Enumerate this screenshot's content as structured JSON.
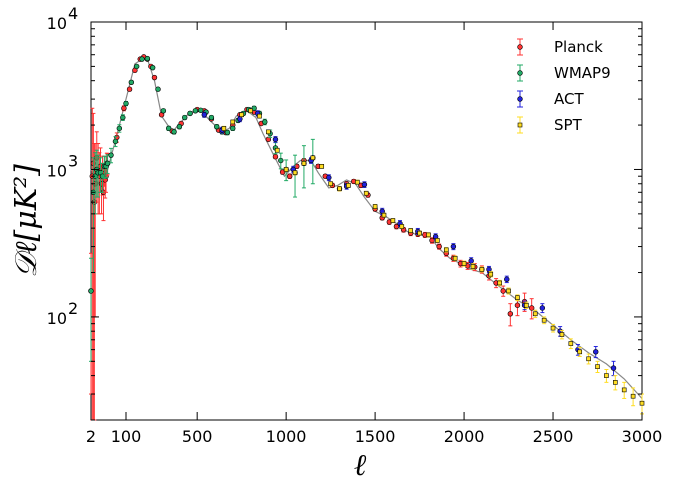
{
  "chart_data": {
    "type": "scatter",
    "xlabel": "ℓ",
    "ylabel": "𝒟ℓ[μK²]",
    "xlim": [
      2,
      3000
    ],
    "ylim": [
      20,
      10000
    ],
    "yscale": "log",
    "xscale": "sqrt-low / linear-high (first 2–100 compressed)",
    "x_ticks": [
      {
        "value": 2,
        "label": "2"
      },
      {
        "value": 100,
        "label": "100"
      },
      {
        "value": 500,
        "label": "500"
      },
      {
        "value": 1000,
        "label": "1000"
      },
      {
        "value": 1500,
        "label": "1500"
      },
      {
        "value": 2000,
        "label": "2000"
      },
      {
        "value": 2500,
        "label": "2500"
      },
      {
        "value": 3000,
        "label": "3000"
      }
    ],
    "y_ticks": [
      {
        "value": 100,
        "base": "10",
        "exp": "2"
      },
      {
        "value": 1000,
        "base": "10",
        "exp": "3"
      },
      {
        "value": 10000,
        "base": "10",
        "exp": "4"
      }
    ],
    "legend_position": "top-right",
    "grid": false,
    "colors": {
      "Planck": "#ff3333",
      "WMAP9": "#22aa66",
      "ACT": "#2222dd",
      "SPT": "#ffdd22",
      "model": "#888888"
    },
    "model_curve": {
      "x": [
        2,
        10,
        30,
        60,
        100,
        150,
        200,
        220,
        260,
        300,
        360,
        410,
        460,
        520,
        580,
        640,
        680,
        720,
        780,
        830,
        870,
        930,
        990,
        1040,
        1080,
        1140,
        1180,
        1240,
        1290,
        1340,
        1390,
        1440,
        1500,
        1560,
        1620,
        1680,
        1740,
        1800,
        1860,
        1920,
        1980,
        2040,
        2100,
        2200,
        2300,
        2400,
        2500,
        2600,
        2700,
        2800,
        2900,
        3000
      ],
      "y": [
        1000,
        800,
        1000,
        1700,
        3000,
        5200,
        5700,
        5600,
        4000,
        2300,
        1800,
        2100,
        2450,
        2500,
        2100,
        1800,
        1900,
        2300,
        2500,
        2250,
        1750,
        1250,
        900,
        1050,
        1150,
        1150,
        950,
        750,
        780,
        850,
        800,
        650,
        520,
        480,
        430,
        380,
        360,
        360,
        290,
        250,
        230,
        210,
        200,
        160,
        130,
        110,
        88,
        70,
        57,
        48,
        38,
        28
      ]
    },
    "series": [
      {
        "name": "Planck",
        "x": [
          2,
          3,
          4,
          5,
          6,
          8,
          10,
          12,
          14,
          16,
          18,
          20,
          22,
          24,
          26,
          28,
          30,
          60,
          90,
          120,
          150,
          180,
          200,
          220,
          240,
          260,
          300,
          360,
          410,
          460,
          500,
          540,
          580,
          620,
          660,
          700,
          740,
          780,
          820,
          860,
          900,
          940,
          980,
          1020,
          1060,
          1100,
          1140,
          1180,
          1220,
          1260,
          1300,
          1340,
          1380,
          1420,
          1460,
          1500,
          1540,
          1580,
          1620,
          1660,
          1700,
          1740,
          1780,
          1820,
          1860,
          1900,
          1940,
          1980,
          2020,
          2060,
          2100,
          2140,
          2180,
          2220,
          2260,
          2300,
          2340,
          2380
        ],
        "y": [
          150,
          900,
          1100,
          600,
          800,
          1200,
          1000,
          900,
          1050,
          800,
          950,
          700,
          1000,
          850,
          900,
          1100,
          1100,
          1650,
          2600,
          3500,
          4700,
          5600,
          5800,
          5600,
          5000,
          4200,
          2350,
          1820,
          2050,
          2400,
          2550,
          2500,
          2200,
          1850,
          1780,
          2000,
          2350,
          2550,
          2450,
          2050,
          1600,
          1220,
          960,
          900,
          1050,
          1150,
          1150,
          1050,
          900,
          780,
          740,
          800,
          830,
          780,
          670,
          540,
          470,
          440,
          410,
          390,
          370,
          365,
          360,
          330,
          300,
          270,
          250,
          230,
          222,
          218,
          210,
          190,
          170,
          150,
          105,
          120,
          127,
          115
        ],
        "yerr": [
          120,
          1700,
          1300,
          900,
          700,
          600,
          500,
          400,
          350,
          300,
          280,
          250,
          230,
          210,
          200,
          190,
          180,
          120,
          100,
          90,
          80,
          80,
          70,
          70,
          60,
          60,
          50,
          40,
          40,
          40,
          40,
          40,
          40,
          40,
          40,
          40,
          40,
          40,
          40,
          40,
          40,
          35,
          30,
          30,
          30,
          30,
          30,
          30,
          25,
          25,
          25,
          25,
          25,
          25,
          20,
          18,
          15,
          15,
          14,
          14,
          14,
          14,
          14,
          14,
          12,
          12,
          12,
          12,
          12,
          12,
          12,
          12,
          12,
          12,
          18,
          18,
          18,
          18
        ]
      },
      {
        "name": "WMAP9",
        "x": [
          2,
          4,
          6,
          8,
          10,
          14,
          18,
          22,
          26,
          30,
          40,
          55,
          70,
          85,
          100,
          130,
          160,
          190,
          220,
          250,
          280,
          310,
          340,
          370,
          400,
          430,
          460,
          490,
          520,
          550,
          580,
          610,
          640,
          670,
          700,
          730,
          760,
          790,
          820,
          850,
          880,
          910,
          940,
          970,
          1000,
          1050,
          1100,
          1150
        ],
        "y": [
          150,
          700,
          900,
          1000,
          950,
          950,
          900,
          1050,
          1050,
          1100,
          1250,
          1550,
          1900,
          2250,
          2800,
          3900,
          5000,
          5600,
          5650,
          4900,
          3500,
          2500,
          1900,
          1800,
          1950,
          2250,
          2400,
          2500,
          2520,
          2450,
          2250,
          1950,
          1800,
          1780,
          1900,
          2150,
          2400,
          2550,
          2600,
          2400,
          2100,
          1750,
          1400,
          1150,
          1000,
          950,
          1100,
          1200
        ],
        "yerr": [
          100,
          500,
          400,
          350,
          300,
          250,
          200,
          180,
          170,
          160,
          140,
          120,
          110,
          100,
          90,
          80,
          80,
          80,
          80,
          80,
          70,
          60,
          60,
          60,
          60,
          60,
          60,
          60,
          60,
          60,
          60,
          60,
          60,
          60,
          60,
          60,
          70,
          70,
          80,
          80,
          90,
          100,
          120,
          140,
          160,
          300,
          350,
          400
        ]
      },
      {
        "name": "ACT",
        "x": [
          540,
          640,
          740,
          840,
          940,
          1040,
          1140,
          1240,
          1340,
          1440,
          1540,
          1640,
          1740,
          1840,
          1940,
          2040,
          2140,
          2240,
          2340,
          2440,
          2540,
          2640,
          2740,
          2840
        ],
        "y": [
          2350,
          1850,
          2200,
          2400,
          1600,
          1000,
          1150,
          880,
          770,
          790,
          520,
          430,
          380,
          350,
          300,
          240,
          210,
          180,
          120,
          115,
          80,
          60,
          58,
          45
        ],
        "yerr": [
          90,
          80,
          90,
          100,
          70,
          50,
          50,
          40,
          35,
          35,
          25,
          20,
          18,
          16,
          14,
          12,
          10,
          9,
          8,
          8,
          6,
          5,
          5,
          5
        ]
      },
      {
        "name": "SPT",
        "x": [
          650,
          700,
          750,
          800,
          850,
          900,
          950,
          1000,
          1050,
          1100,
          1150,
          1200,
          1250,
          1300,
          1350,
          1400,
          1450,
          1500,
          1550,
          1600,
          1650,
          1700,
          1750,
          1800,
          1850,
          1900,
          1950,
          2000,
          2050,
          2100,
          2150,
          2200,
          2250,
          2300,
          2350,
          2400,
          2450,
          2500,
          2550,
          2600,
          2650,
          2700,
          2750,
          2800,
          2850,
          2900,
          2950,
          3000
        ],
        "y": [
          1900,
          2100,
          2350,
          2500,
          2300,
          1800,
          1350,
          1000,
          950,
          1100,
          1200,
          1050,
          800,
          740,
          780,
          820,
          690,
          560,
          490,
          450,
          410,
          385,
          370,
          360,
          330,
          285,
          250,
          230,
          220,
          210,
          195,
          170,
          150,
          135,
          120,
          105,
          95,
          84,
          76,
          66,
          58,
          52,
          46,
          40,
          36,
          32,
          29,
          26
        ],
        "yerr": [
          60,
          60,
          70,
          70,
          60,
          50,
          40,
          30,
          30,
          30,
          30,
          30,
          25,
          25,
          25,
          25,
          20,
          18,
          15,
          14,
          12,
          12,
          12,
          12,
          10,
          10,
          9,
          9,
          9,
          8,
          8,
          7,
          7,
          6,
          6,
          6,
          5,
          5,
          5,
          5,
          4,
          4,
          4,
          4,
          4,
          4,
          4,
          4
        ]
      }
    ]
  }
}
